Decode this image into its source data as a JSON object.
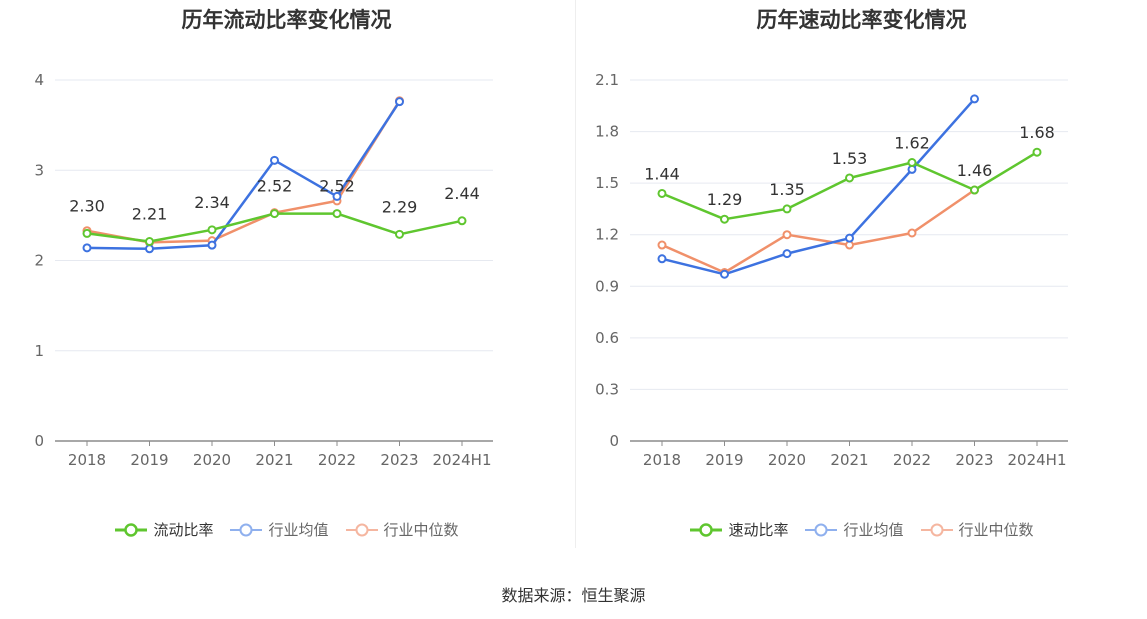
{
  "source_text": "数据来源：恒生聚源",
  "chart_data": [
    {
      "type": "line",
      "title": "历年流动比率变化情况",
      "categories": [
        "2018",
        "2019",
        "2020",
        "2021",
        "2022",
        "2023",
        "2024H1"
      ],
      "ylim": [
        0,
        4
      ],
      "yticks": [
        0,
        1,
        2,
        3,
        4
      ],
      "ytick_labels": [
        "0",
        "1",
        "2",
        "3",
        "4"
      ],
      "grid": true,
      "legend_position": "bottom",
      "series": [
        {
          "name": "流动比率",
          "color": "#5fc62f",
          "values": [
            2.3,
            2.21,
            2.34,
            2.52,
            2.52,
            2.29,
            2.44
          ],
          "labels": [
            "2.30",
            "2.21",
            "2.34",
            "2.52",
            "2.52",
            "2.29",
            "2.44"
          ]
        },
        {
          "name": "行业均值",
          "color": "#3d72e0",
          "values": [
            2.14,
            2.13,
            2.17,
            3.11,
            2.71,
            3.76,
            null
          ]
        },
        {
          "name": "行业中位数",
          "color": "#f0906a",
          "values": [
            2.33,
            2.2,
            2.22,
            2.53,
            2.66,
            3.77,
            null
          ]
        }
      ]
    },
    {
      "type": "line",
      "title": "历年速动比率变化情况",
      "categories": [
        "2018",
        "2019",
        "2020",
        "2021",
        "2022",
        "2023",
        "2024H1"
      ],
      "ylim": [
        0,
        2.1
      ],
      "yticks": [
        0,
        0.3,
        0.6,
        0.9,
        1.2,
        1.5,
        1.8,
        2.1
      ],
      "ytick_labels": [
        "0",
        "0.3",
        "0.6",
        "0.9",
        "1.2",
        "1.5",
        "1.8",
        "2.1"
      ],
      "grid": true,
      "legend_position": "bottom",
      "series": [
        {
          "name": "速动比率",
          "color": "#5fc62f",
          "values": [
            1.44,
            1.29,
            1.35,
            1.53,
            1.62,
            1.46,
            1.68
          ],
          "labels": [
            "1.44",
            "1.29",
            "1.35",
            "1.53",
            "1.62",
            "1.46",
            "1.68"
          ]
        },
        {
          "name": "行业均值",
          "color": "#3d72e0",
          "values": [
            1.06,
            0.97,
            1.09,
            1.18,
            1.58,
            1.99,
            null
          ]
        },
        {
          "name": "行业中位数",
          "color": "#f0906a",
          "values": [
            1.14,
            0.98,
            1.2,
            1.14,
            1.21,
            1.46,
            null
          ]
        }
      ]
    }
  ]
}
